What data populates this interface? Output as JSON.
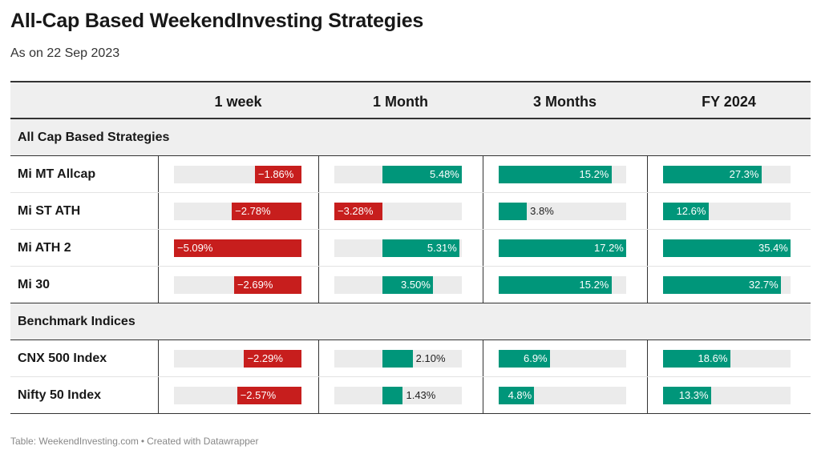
{
  "title": "All-Cap Based WeekendInvesting Strategies",
  "subtitle": "As on 22 Sep 2023",
  "columns": [
    "1 week",
    "1 Month",
    "3 Months",
    "FY 2024"
  ],
  "footer": {
    "source": "Table: WeekendInvesting.com",
    "separator": "•",
    "credit": "Created with Datawrapper"
  },
  "colors": {
    "positive": "#00967a",
    "negative": "#c71e1d",
    "track": "#ebebeb",
    "header_bg": "#efefef"
  },
  "chart_data": {
    "type": "table",
    "title": "All-Cap Based WeekendInvesting Strategies",
    "subtitle": "As on 22 Sep 2023",
    "columns": [
      "1 week",
      "1 Month",
      "3 Months",
      "FY 2024"
    ],
    "groups": [
      {
        "name": "All Cap Based Strategies",
        "rows": [
          {
            "name": "Mi MT Allcap",
            "values": [
              -1.86,
              5.48,
              15.2,
              27.3
            ],
            "labels": [
              "−1.86%",
              "5.48%",
              "15.2%",
              "27.3%"
            ]
          },
          {
            "name": "Mi ST ATH",
            "values": [
              -2.78,
              -3.28,
              3.8,
              12.6
            ],
            "labels": [
              "−2.78%",
              "−3.28%",
              "3.8%",
              "12.6%"
            ]
          },
          {
            "name": "Mi ATH 2",
            "values": [
              -5.09,
              5.31,
              17.2,
              35.4
            ],
            "labels": [
              "−5.09%",
              "5.31%",
              "17.2%",
              "35.4%"
            ]
          },
          {
            "name": "Mi 30",
            "values": [
              -2.69,
              3.5,
              15.2,
              32.7
            ],
            "labels": [
              "−2.69%",
              "3.50%",
              "15.2%",
              "32.7%"
            ]
          }
        ]
      },
      {
        "name": "Benchmark Indices",
        "rows": [
          {
            "name": "CNX 500 Index",
            "values": [
              -2.29,
              2.1,
              6.9,
              18.6
            ],
            "labels": [
              "−2.29%",
              "2.10%",
              "6.9%",
              "18.6%"
            ]
          },
          {
            "name": "Nifty 50 Index",
            "values": [
              -2.57,
              1.43,
              4.8,
              13.3
            ],
            "labels": [
              "−2.57%",
              "1.43%",
              "4.8%",
              "13.3%"
            ]
          }
        ]
      }
    ],
    "column_ranges": [
      [
        -5.09,
        0
      ],
      [
        -3.28,
        5.48
      ],
      [
        0,
        17.2
      ],
      [
        0,
        35.4
      ]
    ]
  }
}
